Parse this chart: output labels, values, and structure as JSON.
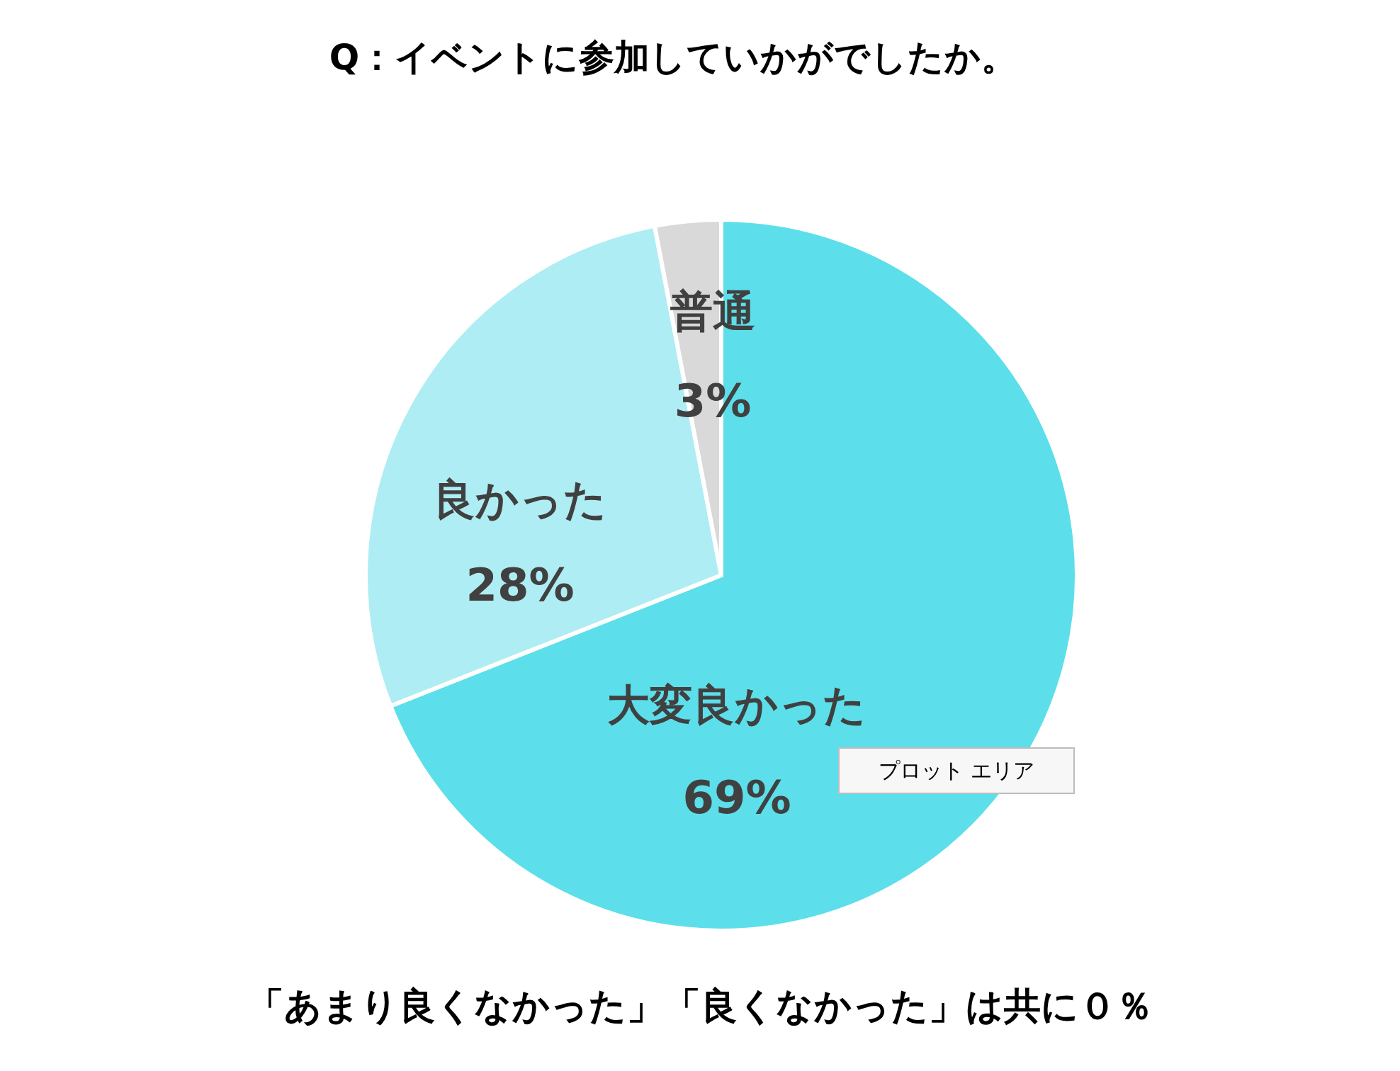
{
  "chart_data": {
    "type": "pie",
    "title": "Q：イベントに参加していかがでしたか。",
    "categories": [
      "大変良かった",
      "良かった",
      "普通"
    ],
    "values": [
      69,
      28,
      3
    ],
    "value_labels": [
      "69%",
      "28%",
      "3%"
    ],
    "colors": [
      "#5cdfea",
      "#aeedf4",
      "#d9d9d9"
    ],
    "annotations": [
      "「あまり良くなかった」「良くなかった」は共に０％",
      "プロット エリア"
    ],
    "legend": false
  }
}
